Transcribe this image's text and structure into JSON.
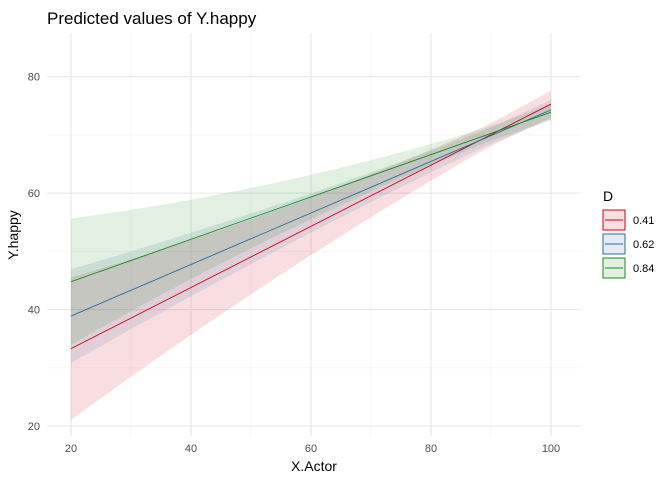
{
  "chart_data": {
    "type": "line",
    "title": "Predicted values of Y.happy",
    "xlabel": "X.Actor",
    "ylabel": "Y.happy",
    "xlim": [
      16,
      105
    ],
    "ylim": [
      18.3,
      87.5
    ],
    "xticks": [
      20,
      40,
      60,
      80,
      100
    ],
    "yticks": [
      20,
      40,
      60,
      80
    ],
    "grid": true,
    "legend": {
      "title": "D",
      "position": "right"
    },
    "x": [
      20,
      100
    ],
    "series": [
      {
        "name": "0.41",
        "color": "#d0021b",
        "values": [
          33.3,
          75.3
        ],
        "ci_lower": [
          21.0,
          68.0
        ],
        "ci_upper": [
          45.5,
          82.5
        ]
      },
      {
        "name": "0.62",
        "color": "#2f6aa3",
        "values": [
          38.9,
          74.3
        ],
        "ci_lower": [
          30.8,
          69.0
        ],
        "ci_upper": [
          46.9,
          79.6
        ]
      },
      {
        "name": "0.84",
        "color": "#1a8a1a",
        "values": [
          44.8,
          73.9
        ],
        "ci_lower": [
          34.0,
          70.0
        ],
        "ci_upper": [
          55.7,
          78.3
        ]
      }
    ]
  }
}
